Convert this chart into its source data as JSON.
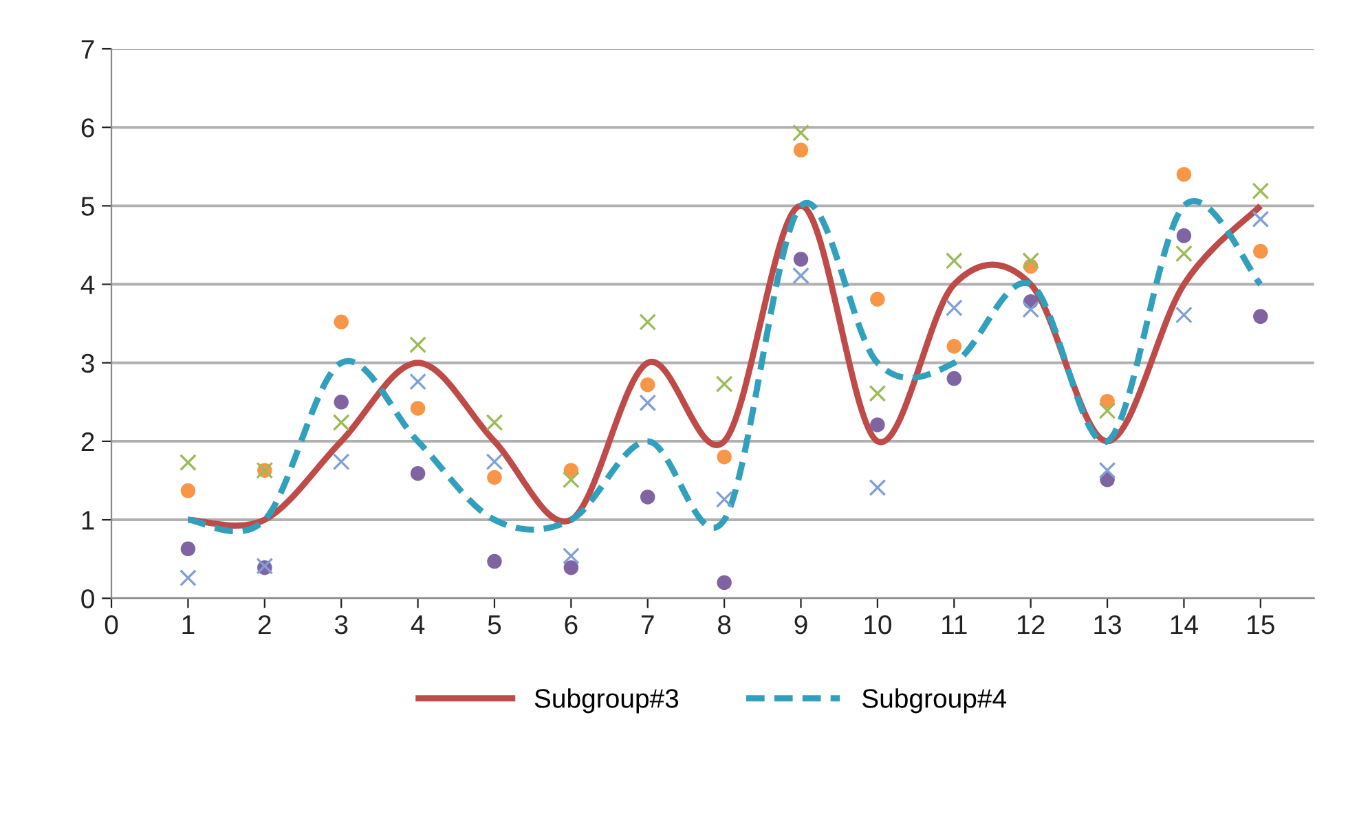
{
  "chart_data": {
    "type": "scatter",
    "x": [
      1,
      2,
      3,
      4,
      5,
      6,
      7,
      8,
      9,
      10,
      11,
      12,
      13,
      14,
      15
    ],
    "xlim": [
      0,
      15.7
    ],
    "xticks": [
      0,
      1,
      2,
      3,
      4,
      5,
      6,
      7,
      8,
      9,
      10,
      11,
      12,
      13,
      14,
      15
    ],
    "ylim": [
      0,
      7
    ],
    "yticks": [
      0,
      1,
      2,
      3,
      4,
      5,
      6,
      7
    ],
    "grid": "y",
    "legend": "bottom",
    "series": [
      {
        "name": "Subgroup#3",
        "type": "line",
        "line_style": "solid",
        "marker": "none",
        "color": "#be4b48",
        "values": [
          1,
          1,
          2,
          3,
          2,
          1,
          3,
          2,
          5,
          2,
          4,
          4,
          2,
          4,
          5
        ]
      },
      {
        "name": "Subgroup#4",
        "type": "line",
        "line_style": "dashed",
        "marker": "none",
        "color": "#31a0bd",
        "values": [
          1,
          1,
          3,
          2,
          1,
          1,
          2,
          1,
          5,
          3,
          3,
          4,
          2,
          5,
          4
        ]
      },
      {
        "marker": "circle",
        "color": "#f79646",
        "values": [
          1.37,
          1.63,
          3.52,
          2.42,
          1.54,
          1.63,
          2.72,
          1.8,
          5.71,
          3.81,
          3.21,
          4.23,
          2.51,
          5.4,
          4.42
        ]
      },
      {
        "marker": "circle",
        "color": "#8064a2",
        "values": [
          0.63,
          0.39,
          2.5,
          1.59,
          0.47,
          0.39,
          1.29,
          0.2,
          4.32,
          2.21,
          2.8,
          3.78,
          1.51,
          4.62,
          3.59
        ]
      },
      {
        "marker": "cross",
        "color": "#9bbb59",
        "values": [
          1.73,
          1.63,
          2.24,
          3.23,
          2.24,
          1.51,
          3.52,
          2.73,
          5.93,
          2.61,
          4.3,
          4.3,
          2.39,
          4.39,
          5.19
        ]
      },
      {
        "marker": "cross",
        "color": "#7f9fd6",
        "values": [
          0.26,
          0.41,
          1.74,
          2.76,
          1.74,
          0.54,
          2.49,
          1.26,
          4.11,
          1.41,
          3.7,
          3.68,
          1.63,
          3.61,
          4.83
        ]
      }
    ]
  }
}
